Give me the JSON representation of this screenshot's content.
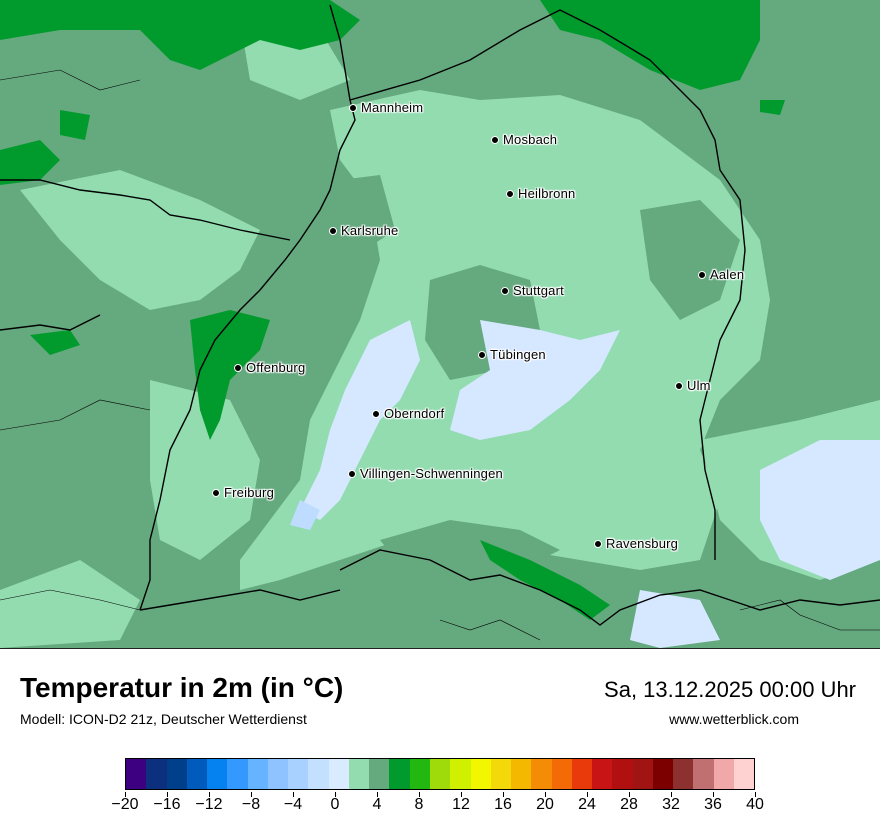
{
  "map": {
    "colors": {
      "dark_green": "#009b2c",
      "mid_green": "#65a97f",
      "light_green": "#92dcb0",
      "pale_blue": "#d6e8ff",
      "light_blue": "#bedcff",
      "border": "#000000"
    },
    "cities": [
      {
        "name": "Mannheim"
      },
      {
        "name": "Mosbach"
      },
      {
        "name": "Heilbronn"
      },
      {
        "name": "Karlsruhe"
      },
      {
        "name": "Aalen"
      },
      {
        "name": "Stuttgart"
      },
      {
        "name": "Tübingen"
      },
      {
        "name": "Offenburg"
      },
      {
        "name": "Ulm"
      },
      {
        "name": "Oberndorf"
      },
      {
        "name": "Villingen-Schwenningen"
      },
      {
        "name": "Freiburg"
      },
      {
        "name": "Ravensburg"
      }
    ]
  },
  "header": {
    "title": "Temperatur in 2m (in °C)",
    "subtitle": "Modell: ICON-D2 21z, Deutscher Wetterdienst",
    "datetime": "Sa, 13.12.2025 00:00 Uhr",
    "website": "www.wetterblick.com"
  },
  "legend": {
    "colors": [
      "#3d0080",
      "#0c2f7e",
      "#003f8a",
      "#005bbd",
      "#0582f0",
      "#3399ff",
      "#66b4ff",
      "#8ec3ff",
      "#a9d1ff",
      "#c4e0ff",
      "#d9ebff",
      "#92dcb0",
      "#65a97f",
      "#009b2c",
      "#22b810",
      "#9fdb0b",
      "#cff100",
      "#f2f700",
      "#f4d90a",
      "#f4b800",
      "#f48c06",
      "#f46a06",
      "#e83a0b",
      "#c81414",
      "#b01010",
      "#a01414",
      "#7d0000",
      "#8c3030",
      "#c07070",
      "#f0a8a8",
      "#ffd2d2"
    ],
    "ticks": [
      "−20",
      "−16",
      "−12",
      "−8",
      "−4",
      "0",
      "4",
      "8",
      "12",
      "16",
      "20",
      "24",
      "28",
      "32",
      "36",
      "40"
    ]
  }
}
